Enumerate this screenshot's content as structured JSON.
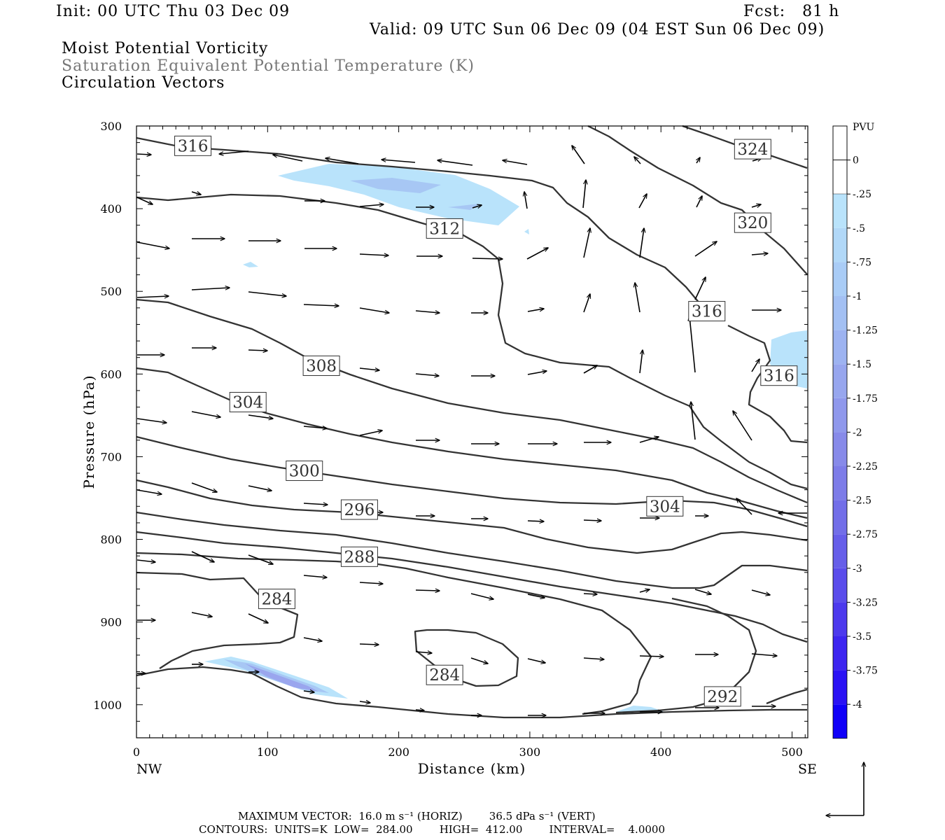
{
  "header": {
    "init": "Init: 00 UTC Thu 03 Dec 09",
    "fcst": "Fcst:   81 h",
    "valid": "Valid: 09 UTC Sun 06 Dec 09 (04 EST Sun 06 Dec 09)"
  },
  "subtitles": {
    "line1": "Moist Potential Vorticity",
    "line2": "Saturation Equivalent Potential Temperature (K)",
    "line3": "Circulation Vectors"
  },
  "footer": {
    "line1": "MAXIMUM VECTOR:  16.0 m s⁻¹ (HORIZ)        36.5 dPa s⁻¹ (VERT)",
    "line2": "CONTOURS:  UNITS=K  LOW=  284.00        HIGH=  412.00        INTERVAL=    4.0000"
  },
  "colors": {
    "contour": "#333333",
    "pv_light": "#b9e3fb",
    "pv_mid": "#a7c7f4",
    "pv_dark": "#9aa6ee",
    "frame": "#000000"
  },
  "chart_data": {
    "type": "contour",
    "xlabel": "Distance (km)",
    "ylabel": "Pressure (hPa)",
    "xlim": [
      0,
      512
    ],
    "ylim": [
      1040,
      300
    ],
    "x_ticks": [
      0,
      100,
      200,
      300,
      400,
      500
    ],
    "y_ticks": [
      300,
      400,
      500,
      600,
      700,
      800,
      900,
      1000
    ],
    "x_end_labels": {
      "left": "NW",
      "right": "SE"
    },
    "contour_labels": [
      {
        "text": "316",
        "x": 43,
        "p": 324
      },
      {
        "text": "324",
        "x": 470,
        "p": 328
      },
      {
        "text": "320",
        "x": 470,
        "p": 417
      },
      {
        "text": "312",
        "x": 235,
        "p": 424
      },
      {
        "text": "316",
        "x": 435,
        "p": 524
      },
      {
        "text": "316",
        "x": 490,
        "p": 602
      },
      {
        "text": "308",
        "x": 141,
        "p": 590
      },
      {
        "text": "304",
        "x": 85,
        "p": 634
      },
      {
        "text": "300",
        "x": 128,
        "p": 717
      },
      {
        "text": "304",
        "x": 403,
        "p": 760
      },
      {
        "text": "296",
        "x": 170,
        "p": 764
      },
      {
        "text": "288",
        "x": 170,
        "p": 821
      },
      {
        "text": "284",
        "x": 107,
        "p": 872
      },
      {
        "text": "284",
        "x": 235,
        "p": 964
      },
      {
        "text": "292",
        "x": 447,
        "p": 990
      }
    ],
    "colorbar": {
      "title": "PVU",
      "labels": [
        "0",
        "-.25",
        "-.5",
        "-.75",
        "-1",
        "-1.25",
        "-1.5",
        "-1.75",
        "-2",
        "-2.25",
        "-2.5",
        "-2.75",
        "-3",
        "-3.25",
        "-3.5",
        "-3.75",
        "-4"
      ],
      "colors": [
        "#ffffff",
        "#ffffff",
        "#b9e3fb",
        "#b1d8f8",
        "#a9ccf6",
        "#a3c0f3",
        "#9db3f1",
        "#97a6ee",
        "#8f98ec",
        "#878ae9",
        "#7d7ce8",
        "#726ee8",
        "#665ee9",
        "#5a4ceb",
        "#4c39ed",
        "#3d25f0",
        "#2a12f4",
        "#1000f8"
      ]
    }
  }
}
